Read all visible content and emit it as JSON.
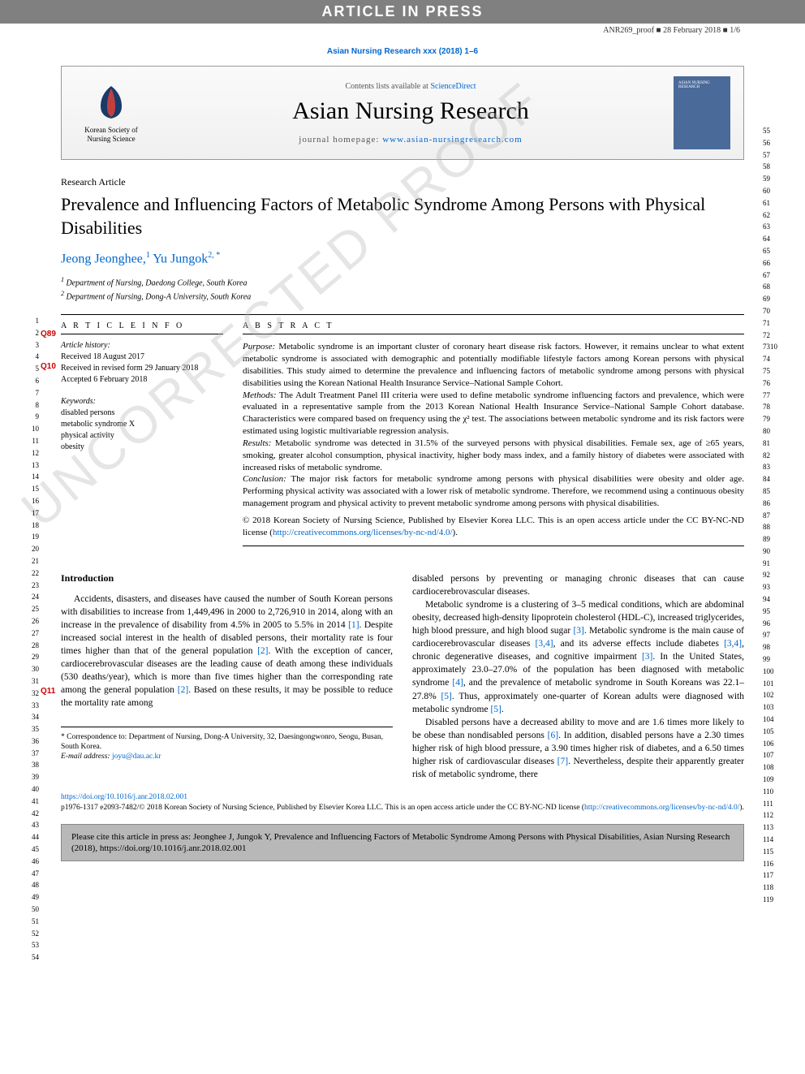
{
  "banner": {
    "text": "ARTICLE IN PRESS"
  },
  "proof_line": "ANR269_proof ■ 28 February 2018 ■ 1/6",
  "journal_ref": "Asian Nursing Research xxx (2018) 1–6",
  "header": {
    "contents_prefix": "Contents lists available at ",
    "contents_link": "ScienceDirect",
    "journal_title": "Asian Nursing Research",
    "homepage_prefix": "journal homepage: ",
    "homepage_url": "www.asian-nursingresearch.com",
    "publisher_name": "Korean Society of Nursing Science",
    "cover_label": "ASIAN NURSING RESEARCH"
  },
  "article": {
    "type": "Research Article",
    "title": "Prevalence and Influencing Factors of Metabolic Syndrome Among Persons with Physical Disabilities",
    "authors": [
      {
        "name": "Jeong Jeonghee,",
        "sup": "1"
      },
      {
        "name": " Yu Jungok",
        "sup": "2, *"
      }
    ],
    "affiliations": [
      {
        "sup": "1",
        "text": " Department of Nursing, Daedong College, South Korea"
      },
      {
        "sup": "2",
        "text": " Department of Nursing, Dong-A University, South Korea"
      }
    ]
  },
  "queries": {
    "q89": "Q89",
    "q10": "Q10",
    "q11": "Q11"
  },
  "info": {
    "heading": "A R T I C L E  I N F O",
    "history_label": "Article history:",
    "received": "Received 18 August 2017",
    "revised": "Received in revised form 29 January 2018",
    "accepted": "Accepted 6 February 2018",
    "keywords_label": "Keywords:",
    "keywords": [
      "disabled persons",
      "metabolic syndrome X",
      "physical activity",
      "obesity"
    ]
  },
  "abstract": {
    "heading": "A B S T R A C T",
    "purpose_label": "Purpose:",
    "purpose": " Metabolic syndrome is an important cluster of coronary heart disease risk factors. However, it remains unclear to what extent metabolic syndrome is associated with demographic and potentially modifiable lifestyle factors among Korean persons with physical disabilities. This study aimed to determine the prevalence and influencing factors of metabolic syndrome among persons with physical disabilities using the Korean National Health Insurance Service–National Sample Cohort.",
    "methods_label": "Methods:",
    "methods": " The Adult Treatment Panel III criteria were used to define metabolic syndrome influencing factors and prevalence, which were evaluated in a representative sample from the 2013 Korean National Health Insurance Service–National Sample Cohort database. Characteristics were compared based on frequency using the χ² test. The associations between metabolic syndrome and its risk factors were estimated using logistic multivariable regression analysis.",
    "results_label": "Results:",
    "results": " Metabolic syndrome was detected in 31.5% of the surveyed persons with physical disabilities. Female sex, age of ≥65 years, smoking, greater alcohol consumption, physical inactivity, higher body mass index, and a family history of diabetes were associated with increased risks of metabolic syndrome.",
    "conclusion_label": "Conclusion:",
    "conclusion": " The major risk factors for metabolic syndrome among persons with physical disabilities were obesity and older age. Performing physical activity was associated with a lower risk of metabolic syndrome. Therefore, we recommend using a continuous obesity management program and physical activity to prevent metabolic syndrome among persons with physical disabilities.",
    "copyright": "© 2018 Korean Society of Nursing Science, Published by Elsevier Korea LLC. This is an open access article under the CC BY-NC-ND license (",
    "license_url": "http://creativecommons.org/licenses/by-nc-nd/4.0/",
    "copyright_close": ")."
  },
  "intro": {
    "heading": "Introduction",
    "p1a": "Accidents, disasters, and diseases have caused the number of South Korean persons with disabilities to increase from 1,449,496 in 2000 to 2,726,910 in 2014, along with an increase in the prevalence of disability from 4.5% in 2005 to 5.5% in 2014 ",
    "ref1": "[1]",
    "p1b": ". Despite increased social interest in the health of disabled persons, their mortality rate is four times higher than that of the general population ",
    "ref2a": "[2]",
    "p1c": ". With the exception of cancer, cardiocerebrovascular diseases are the leading cause of death among these individuals (530 deaths/year), which is more than five times higher than the corresponding rate among the general population ",
    "ref2b": "[2]",
    "p1d": ". Based on these results, it may be possible to reduce the mortality rate among",
    "p_col2_top": "disabled persons by preventing or managing chronic diseases that can cause cardiocerebrovascular diseases.",
    "p2a": "Metabolic syndrome is a clustering of 3–5 medical conditions, which are abdominal obesity, decreased high-density lipoprotein cholesterol (HDL-C), increased triglycerides, high blood pressure, and high blood sugar ",
    "ref3a": "[3]",
    "p2b": ". Metabolic syndrome is the main cause of cardiocerebrovascular diseases ",
    "ref34a": "[3,4]",
    "p2c": ", and its adverse effects include diabetes ",
    "ref34b": "[3,4]",
    "p2d": ", chronic degenerative diseases, and cognitive impairment ",
    "ref3b": "[3]",
    "p2e": ". In the United States, approximately 23.0–27.0% of the population has been diagnosed with metabolic syndrome ",
    "ref4": "[4]",
    "p2f": ", and the prevalence of metabolic syndrome in South Koreans was 22.1–27.8% ",
    "ref5a": "[5]",
    "p2g": ". Thus, approximately one-quarter of Korean adults were diagnosed with metabolic syndrome ",
    "ref5b": "[5]",
    "p2h": ".",
    "p3a": "Disabled persons have a decreased ability to move and are 1.6 times more likely to be obese than nondisabled persons ",
    "ref6": "[6]",
    "p3b": ". In addition, disabled persons have a 2.30 times higher risk of high blood pressure, a 3.90 times higher risk of diabetes, and a 6.50 times higher risk of cardiovascular diseases ",
    "ref7": "[7]",
    "p3c": ". Nevertheless, despite their apparently greater risk of metabolic syndrome, there"
  },
  "footnotes": {
    "correspondence": "* Correspondence to: Department of Nursing, Dong-A University, 32, Daesingongwonro, Seogu, Busan, South Korea.",
    "email_label": "E-mail address: ",
    "email": "joyu@dau.ac.kr"
  },
  "bottom": {
    "doi": "https://doi.org/10.1016/j.anr.2018.02.001",
    "issn_line": "p1976-1317 e2093-7482/© 2018 Korean Society of Nursing Science, Published by Elsevier Korea LLC. This is an open access article under the CC BY-NC-ND license (",
    "license_url": "http://creativecommons.org/licenses/by-nc-nd/4.0/",
    "close": ")."
  },
  "citation_box": "Please cite this article in press as: Jeonghee J, Jungok Y, Prevalence and Influencing Factors of Metabolic Syndrome Among Persons with Physical Disabilities, Asian Nursing Research (2018), https://doi.org/10.1016/j.anr.2018.02.001",
  "watermark": "UNCORRECTED PROOF",
  "line_numbers": {
    "left_start": 1,
    "left_end": 54,
    "right_start": 55,
    "right_end": 119,
    "right_special": "7310"
  },
  "colors": {
    "banner_bg": "#808080",
    "link": "#0066cc",
    "query": "#cc0000",
    "citation_bg": "#b8b8b8",
    "cover_bg": "#4a6a9a"
  }
}
